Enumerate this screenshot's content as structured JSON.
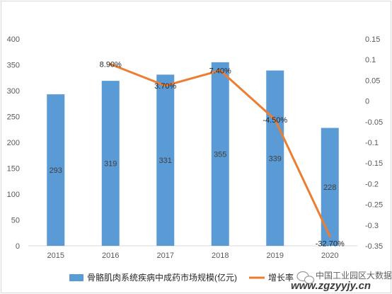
{
  "chart_data": {
    "type": "bar+line",
    "categories": [
      "2015",
      "2016",
      "2017",
      "2018",
      "2019",
      "2020"
    ],
    "series": [
      {
        "name": "骨骼肌肉系统疾病中成药市场规模(亿元)",
        "type": "bar",
        "axis": "left",
        "color": "#5b9bd5",
        "values": [
          293,
          319,
          331,
          355,
          339,
          228
        ],
        "labels": [
          "293",
          "319",
          "331",
          "355",
          "339",
          "228"
        ]
      },
      {
        "name": "增长率",
        "type": "line",
        "axis": "right",
        "color": "#ed7d31",
        "values": [
          null,
          0.089,
          0.037,
          0.074,
          -0.045,
          -0.327
        ],
        "labels": [
          "",
          "8.90%",
          "3.70%",
          "7.40%",
          "-4.50%",
          "-32.70%"
        ]
      }
    ],
    "y_left": {
      "min": 0,
      "max": 400,
      "ticks": [
        "0",
        "50",
        "100",
        "150",
        "200",
        "250",
        "300",
        "350",
        "400"
      ]
    },
    "y_right": {
      "min": -0.35,
      "max": 0.15,
      "ticks": [
        "-0.35",
        "-0.3",
        "-0.25",
        "-0.2",
        "-0.15",
        "-0.1",
        "-0.05",
        "0",
        "0.05",
        "0.1",
        "0.15"
      ]
    },
    "grid": false,
    "legend_position": "bottom"
  },
  "watermark": {
    "brand_text": "中国工业园区大数据",
    "url_text": "www.zgzyyjy.cn"
  }
}
